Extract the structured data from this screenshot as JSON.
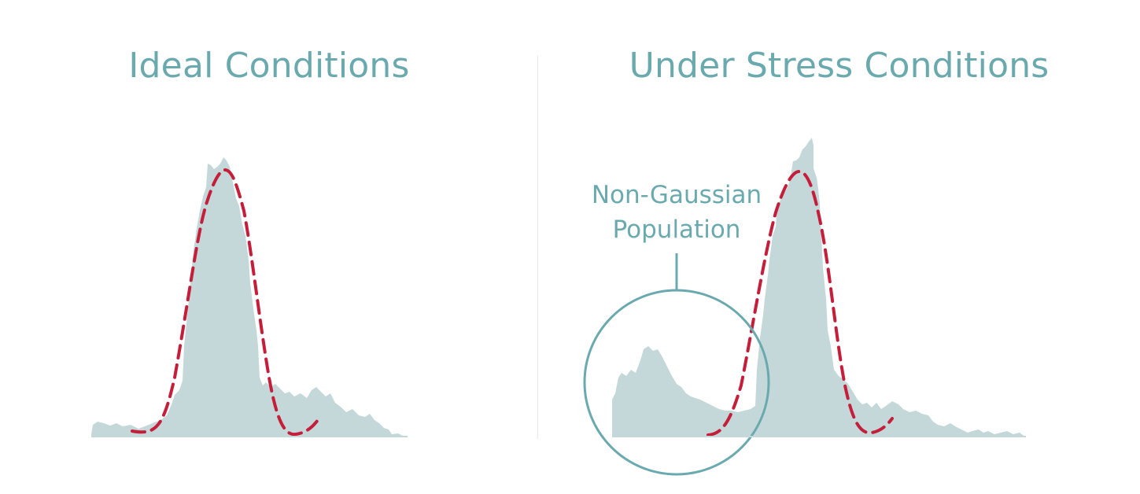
{
  "panels": [
    {
      "title": "Ideal Conditions"
    },
    {
      "title": "Under Stress Conditions"
    }
  ],
  "annotation": {
    "line1": "Non-Gaussian",
    "line2": "Population"
  },
  "colors": {
    "title": "#6aa9ae",
    "histogram_fill": "#c5d8d9",
    "gaussian_fit": "#c41e3a",
    "callout": "#6aa9ae",
    "divider": "#e6eaea"
  }
}
